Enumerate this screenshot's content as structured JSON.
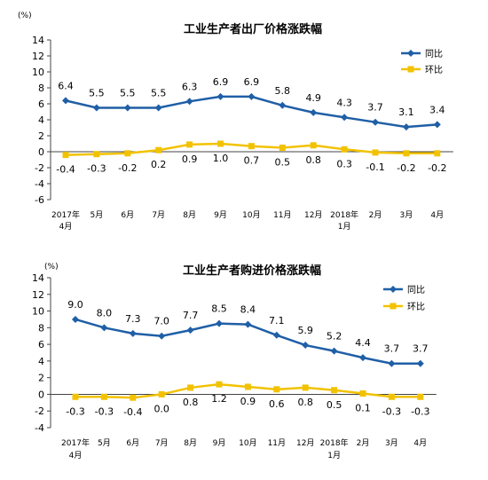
{
  "chart_data": [
    {
      "type": "line",
      "title": "工业生产者出厂价格涨跌幅",
      "ylabel": "(%)",
      "ylim": [
        -6,
        14
      ],
      "yticks": [
        "14",
        "12",
        "10",
        "8",
        "6",
        "4",
        "2",
        "0",
        "-2",
        "-4",
        "-6"
      ],
      "categories": [
        "2017年4月",
        "5月",
        "6月",
        "7月",
        "8月",
        "9月",
        "10月",
        "11月",
        "12月",
        "2018年1月",
        "2月",
        "3月",
        "4月"
      ],
      "grid": false,
      "legend_position": "top-right",
      "series": [
        {
          "name": "同比",
          "color": "#1f5fa6",
          "marker": "diamond",
          "values": [
            6.4,
            5.5,
            5.5,
            5.5,
            6.3,
            6.9,
            6.9,
            5.8,
            4.9,
            4.3,
            3.7,
            3.1,
            3.4
          ],
          "labels": [
            "6.4",
            "5.5",
            "5.5",
            "5.5",
            "6.3",
            "6.9",
            "6.9",
            "5.8",
            "4.9",
            "4.3",
            "3.7",
            "3.1",
            "3.4"
          ]
        },
        {
          "name": "环比",
          "color": "#f2c200",
          "marker": "square",
          "values": [
            -0.4,
            -0.3,
            -0.2,
            0.2,
            0.9,
            1.0,
            0.7,
            0.5,
            0.8,
            0.3,
            -0.1,
            -0.2,
            -0.2
          ],
          "labels": [
            "-0.4",
            "-0.3",
            "-0.2",
            "0.2",
            "0.9",
            "1.0",
            "0.7",
            "0.5",
            "0.8",
            "0.3",
            "-0.1",
            "-0.2",
            "-0.2"
          ]
        }
      ]
    },
    {
      "type": "line",
      "title": "工业生产者购进价格涨跌幅",
      "ylabel": "(%)",
      "ylim": [
        -4,
        14
      ],
      "yticks": [
        "14",
        "12",
        "10",
        "8",
        "6",
        "4",
        "2",
        "0",
        "-2",
        "-4"
      ],
      "categories": [
        "2017年4月",
        "5月",
        "6月",
        "7月",
        "8月",
        "9月",
        "10月",
        "11月",
        "12月",
        "2018年1月",
        "2月",
        "3月",
        "4月"
      ],
      "grid": false,
      "legend_position": "top-right",
      "series": [
        {
          "name": "同比",
          "color": "#1f5fa6",
          "marker": "diamond",
          "values": [
            9.0,
            8.0,
            7.3,
            7.0,
            7.7,
            8.5,
            8.4,
            7.1,
            5.9,
            5.2,
            4.4,
            3.7,
            3.7
          ],
          "labels": [
            "9.0",
            "8.0",
            "7.3",
            "7.0",
            "7.7",
            "8.5",
            "8.4",
            "7.1",
            "5.9",
            "5.2",
            "4.4",
            "3.7",
            "3.7"
          ]
        },
        {
          "name": "环比",
          "color": "#f2c200",
          "marker": "square",
          "values": [
            -0.3,
            -0.3,
            -0.4,
            0.0,
            0.8,
            1.2,
            0.9,
            0.6,
            0.8,
            0.5,
            0.1,
            -0.3,
            -0.3
          ],
          "labels": [
            "-0.3",
            "-0.3",
            "-0.4",
            "0.0",
            "0.8",
            "1.2",
            "0.9",
            "0.6",
            "0.8",
            "0.5",
            "0.1",
            "-0.3",
            "-0.3"
          ]
        }
      ]
    }
  ]
}
